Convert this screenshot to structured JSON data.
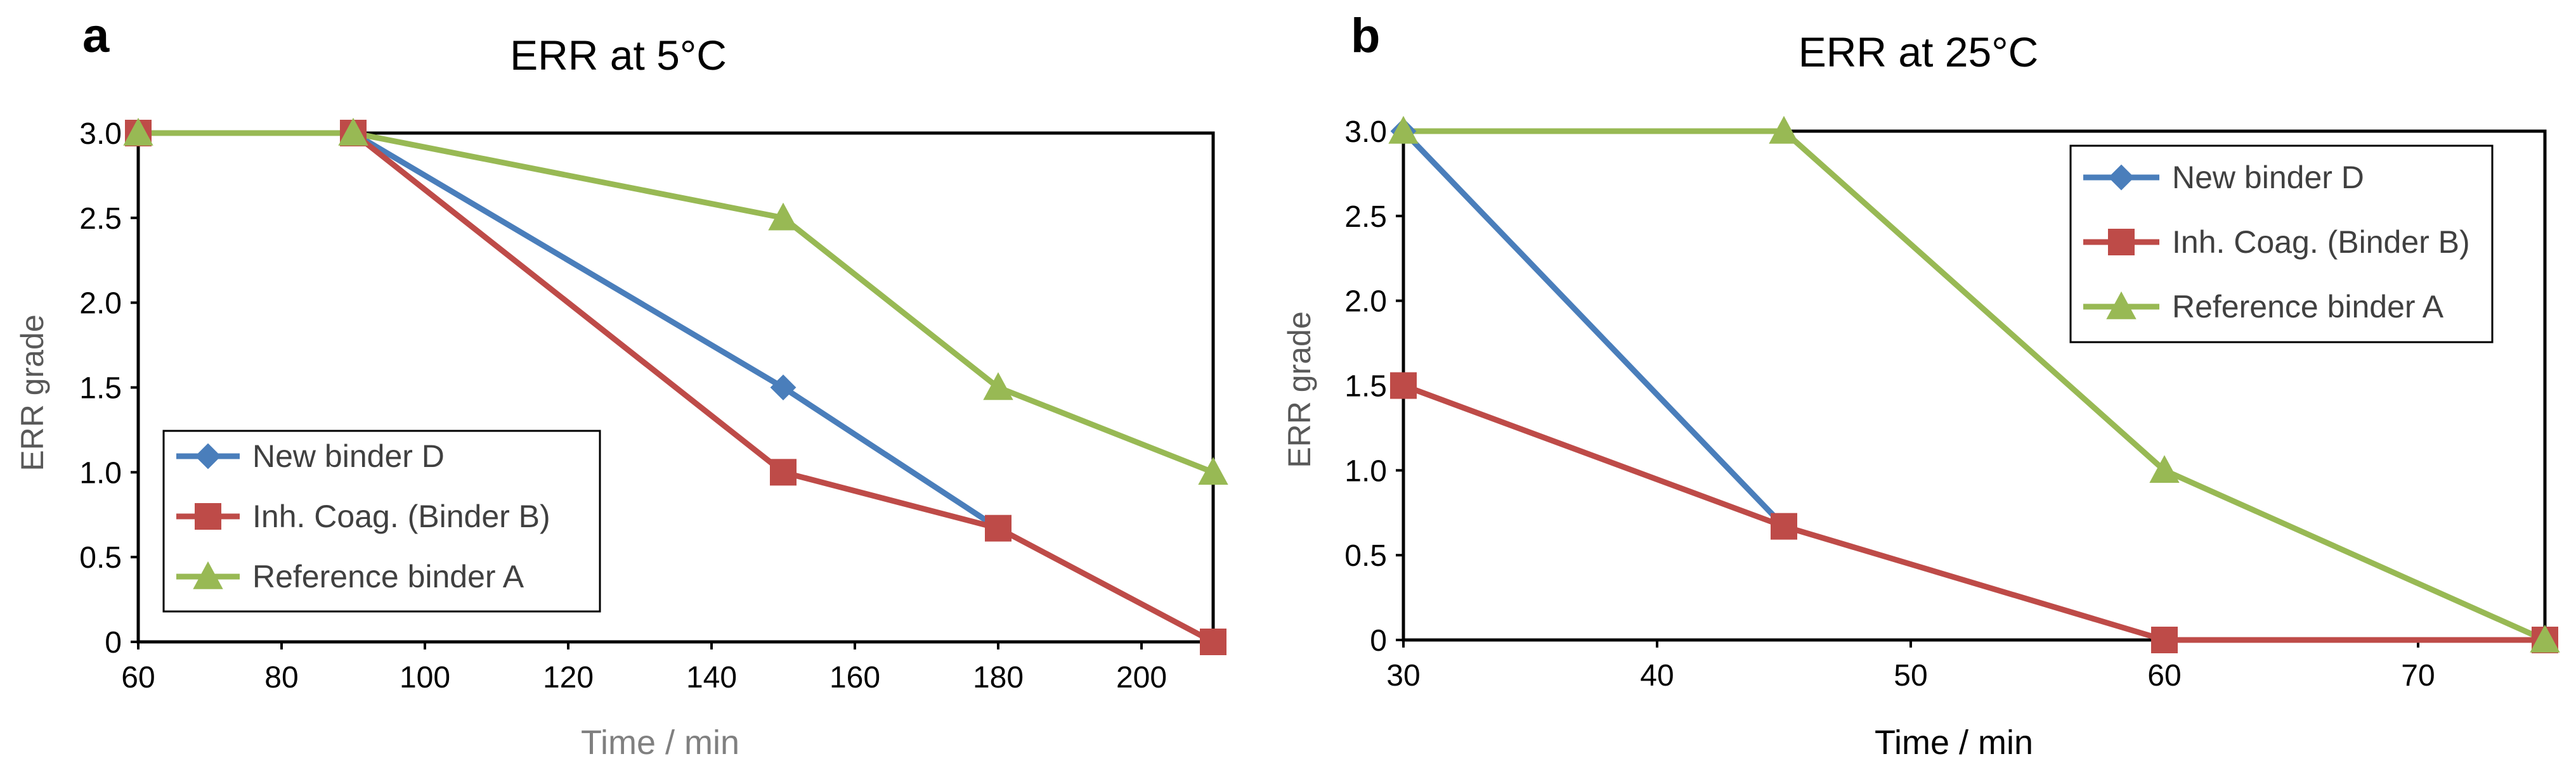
{
  "chart_data": [
    {
      "panel_letter": "a",
      "type": "line",
      "title": "ERR at 5°C",
      "xlabel": "Time / min",
      "ylabel": "ERR grade",
      "xlim": [
        60,
        210
      ],
      "ylim": [
        0,
        3
      ],
      "xticks": [
        60,
        80,
        100,
        120,
        140,
        160,
        180,
        200
      ],
      "xtick_labels": [
        "60",
        "80",
        "100",
        "120",
        "140",
        "160",
        "180",
        "200"
      ],
      "yticks": [
        0,
        0.5,
        1,
        1.5,
        2,
        2.5,
        3
      ],
      "ytick_labels": [
        "0",
        "0.5",
        "1.0",
        "1.5",
        "2.0",
        "2.5",
        "3.0"
      ],
      "grid": false,
      "legend_position": "bottom-left",
      "series": [
        {
          "name": "New binder D",
          "color": "#4a7ebb",
          "marker": "diamond",
          "x": [
            60,
            90,
            150,
            180
          ],
          "y": [
            3.0,
            3.0,
            1.5,
            0.67
          ]
        },
        {
          "name": "Inh. Coag. (Binder B)",
          "color": "#be4b48",
          "marker": "square",
          "x": [
            60,
            90,
            150,
            180,
            210
          ],
          "y": [
            3.0,
            3.0,
            1.0,
            0.67,
            0.0
          ]
        },
        {
          "name": "Reference binder A",
          "color": "#98b954",
          "marker": "triangle",
          "x": [
            60,
            90,
            150,
            180,
            210
          ],
          "y": [
            3.0,
            3.0,
            2.5,
            1.5,
            1.0
          ]
        }
      ]
    },
    {
      "panel_letter": "b",
      "type": "line",
      "title": "ERR at 25°C",
      "xlabel": "Time / min",
      "ylabel": "ERR grade",
      "xlim": [
        30,
        75
      ],
      "ylim": [
        0,
        3
      ],
      "xticks": [
        30,
        40,
        50,
        60,
        70
      ],
      "xtick_labels": [
        "30",
        "40",
        "50",
        "60",
        "70"
      ],
      "yticks": [
        0,
        0.5,
        1,
        1.5,
        2,
        2.5,
        3
      ],
      "ytick_labels": [
        "0",
        "0.5",
        "1.0",
        "1.5",
        "2.0",
        "2.5",
        "3.0"
      ],
      "grid": false,
      "legend_position": "top-right",
      "series": [
        {
          "name": "New binder D",
          "color": "#4a7ebb",
          "marker": "diamond",
          "x": [
            30,
            45
          ],
          "y": [
            3.0,
            0.67
          ]
        },
        {
          "name": "Inh. Coag. (Binder B)",
          "color": "#be4b48",
          "marker": "square",
          "x": [
            30,
            45,
            60,
            75
          ],
          "y": [
            1.5,
            0.67,
            0.0,
            0.0
          ]
        },
        {
          "name": "Reference binder A",
          "color": "#98b954",
          "marker": "triangle",
          "x": [
            30,
            45,
            60,
            75
          ],
          "y": [
            3.0,
            3.0,
            1.0,
            0.0
          ]
        }
      ]
    }
  ]
}
